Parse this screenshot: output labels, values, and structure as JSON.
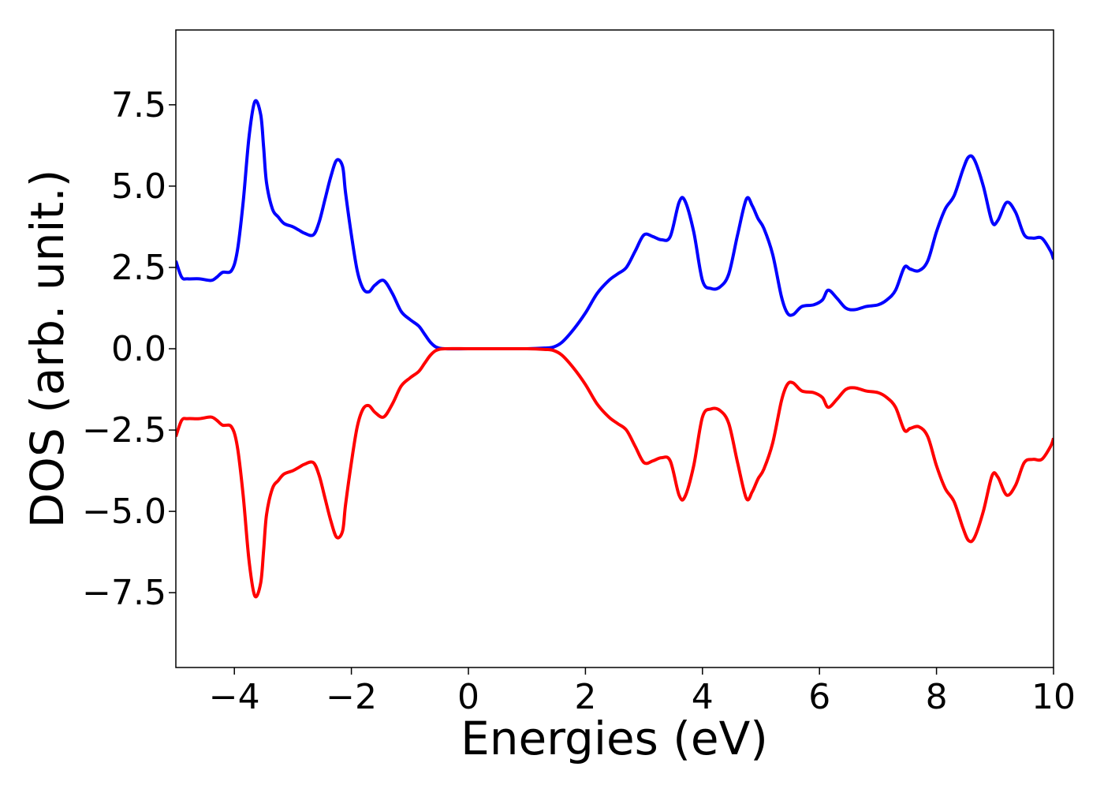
{
  "chart_data": {
    "type": "line",
    "title": "",
    "xlabel": "Energies (eV)",
    "ylabel": "DOS (arb. unit.)",
    "xlim": [
      -5,
      10
    ],
    "ylim": [
      -9.8,
      9.8
    ],
    "grid": false,
    "x_ticks": [
      -4,
      -2,
      0,
      2,
      4,
      6,
      8,
      10
    ],
    "x_tick_labels": [
      "−4",
      "−2",
      "0",
      "2",
      "4",
      "6",
      "8",
      "10"
    ],
    "y_ticks": [
      -7.5,
      -5.0,
      -2.5,
      0.0,
      2.5,
      5.0,
      7.5
    ],
    "y_tick_labels": [
      "−7.5",
      "−5.0",
      "−2.5",
      "0.0",
      "2.5",
      "5.0",
      "7.5"
    ],
    "series": [
      {
        "color": "#0000ff",
        "x": [
          -5.0,
          -4.9,
          -4.8,
          -4.6,
          -4.4,
          -4.3,
          -4.2,
          -4.05,
          -3.95,
          -3.85,
          -3.75,
          -3.65,
          -3.55,
          -3.5,
          -3.45,
          -3.35,
          -3.25,
          -3.15,
          -3.0,
          -2.9,
          -2.8,
          -2.65,
          -2.55,
          -2.45,
          -2.35,
          -2.25,
          -2.15,
          -2.1,
          -2.0,
          -1.9,
          -1.8,
          -1.7,
          -1.6,
          -1.45,
          -1.3,
          -1.15,
          -1.0,
          -0.85,
          -0.75,
          -0.65,
          -0.55,
          -0.4,
          0.0,
          0.5,
          1.0,
          1.3,
          1.45,
          1.6,
          1.8,
          2.0,
          2.2,
          2.4,
          2.55,
          2.7,
          2.85,
          3.0,
          3.15,
          3.3,
          3.45,
          3.6,
          3.7,
          3.85,
          4.0,
          4.15,
          4.3,
          4.45,
          4.6,
          4.75,
          4.85,
          4.95,
          5.05,
          5.2,
          5.35,
          5.45,
          5.55,
          5.7,
          5.9,
          6.05,
          6.15,
          6.3,
          6.45,
          6.6,
          6.8,
          7.0,
          7.15,
          7.3,
          7.45,
          7.55,
          7.7,
          7.85,
          8.0,
          8.15,
          8.3,
          8.45,
          8.55,
          8.65,
          8.8,
          8.95,
          9.05,
          9.2,
          9.35,
          9.5,
          9.65,
          9.8,
          9.95,
          10.0
        ],
        "values": [
          2.7,
          2.2,
          2.15,
          2.15,
          2.1,
          2.2,
          2.35,
          2.4,
          3.0,
          4.5,
          6.5,
          7.6,
          7.2,
          6.2,
          5.1,
          4.3,
          4.05,
          3.85,
          3.75,
          3.65,
          3.55,
          3.5,
          3.9,
          4.6,
          5.3,
          5.8,
          5.6,
          4.8,
          3.5,
          2.4,
          1.85,
          1.75,
          1.95,
          2.1,
          1.7,
          1.15,
          0.9,
          0.7,
          0.45,
          0.2,
          0.05,
          0.0,
          0.0,
          0.0,
          0.0,
          0.02,
          0.05,
          0.2,
          0.6,
          1.1,
          1.7,
          2.1,
          2.3,
          2.5,
          3.0,
          3.5,
          3.45,
          3.35,
          3.45,
          4.5,
          4.55,
          3.6,
          2.1,
          1.85,
          1.9,
          2.3,
          3.5,
          4.6,
          4.4,
          4.0,
          3.7,
          2.9,
          1.6,
          1.1,
          1.05,
          1.3,
          1.35,
          1.5,
          1.8,
          1.55,
          1.25,
          1.2,
          1.3,
          1.35,
          1.5,
          1.8,
          2.5,
          2.45,
          2.4,
          2.7,
          3.6,
          4.3,
          4.7,
          5.5,
          5.9,
          5.8,
          5.0,
          3.9,
          3.95,
          4.5,
          4.2,
          3.5,
          3.4,
          3.4,
          3.0,
          2.75
        ]
      },
      {
        "color": "#ff0000",
        "x": [
          -5.0,
          -4.9,
          -4.8,
          -4.6,
          -4.4,
          -4.3,
          -4.2,
          -4.05,
          -3.95,
          -3.85,
          -3.75,
          -3.65,
          -3.55,
          -3.5,
          -3.45,
          -3.35,
          -3.25,
          -3.15,
          -3.0,
          -2.9,
          -2.8,
          -2.65,
          -2.55,
          -2.45,
          -2.35,
          -2.25,
          -2.15,
          -2.1,
          -2.0,
          -1.9,
          -1.8,
          -1.7,
          -1.6,
          -1.45,
          -1.3,
          -1.15,
          -1.0,
          -0.85,
          -0.75,
          -0.65,
          -0.55,
          -0.4,
          0.0,
          0.5,
          1.0,
          1.3,
          1.45,
          1.6,
          1.8,
          2.0,
          2.2,
          2.4,
          2.55,
          2.7,
          2.85,
          3.0,
          3.15,
          3.3,
          3.45,
          3.6,
          3.7,
          3.85,
          4.0,
          4.15,
          4.3,
          4.45,
          4.6,
          4.75,
          4.85,
          4.95,
          5.05,
          5.2,
          5.35,
          5.45,
          5.55,
          5.7,
          5.9,
          6.05,
          6.15,
          6.3,
          6.45,
          6.6,
          6.8,
          7.0,
          7.15,
          7.3,
          7.45,
          7.55,
          7.7,
          7.85,
          8.0,
          8.15,
          8.3,
          8.45,
          8.55,
          8.65,
          8.8,
          8.95,
          9.05,
          9.2,
          9.35,
          9.5,
          9.65,
          9.8,
          9.95,
          10.0
        ],
        "values": [
          -2.7,
          -2.2,
          -2.15,
          -2.15,
          -2.1,
          -2.2,
          -2.35,
          -2.4,
          -3.0,
          -4.5,
          -6.5,
          -7.6,
          -7.2,
          -6.2,
          -5.1,
          -4.3,
          -4.05,
          -3.85,
          -3.75,
          -3.65,
          -3.55,
          -3.5,
          -3.9,
          -4.6,
          -5.3,
          -5.8,
          -5.6,
          -4.8,
          -3.5,
          -2.4,
          -1.85,
          -1.75,
          -1.95,
          -2.1,
          -1.7,
          -1.15,
          -0.9,
          -0.7,
          -0.45,
          -0.2,
          -0.05,
          0.0,
          0.0,
          0.0,
          0.0,
          -0.02,
          -0.05,
          -0.2,
          -0.6,
          -1.1,
          -1.7,
          -2.1,
          -2.3,
          -2.5,
          -3.0,
          -3.5,
          -3.45,
          -3.35,
          -3.45,
          -4.5,
          -4.55,
          -3.6,
          -2.1,
          -1.85,
          -1.9,
          -2.3,
          -3.5,
          -4.6,
          -4.4,
          -4.0,
          -3.7,
          -2.9,
          -1.6,
          -1.1,
          -1.05,
          -1.3,
          -1.35,
          -1.5,
          -1.8,
          -1.55,
          -1.25,
          -1.2,
          -1.3,
          -1.35,
          -1.5,
          -1.8,
          -2.5,
          -2.45,
          -2.4,
          -2.7,
          -3.6,
          -4.3,
          -4.7,
          -5.5,
          -5.9,
          -5.8,
          -5.0,
          -3.9,
          -3.95,
          -4.5,
          -4.2,
          -3.5,
          -3.4,
          -3.4,
          -3.0,
          -2.75
        ]
      }
    ]
  }
}
